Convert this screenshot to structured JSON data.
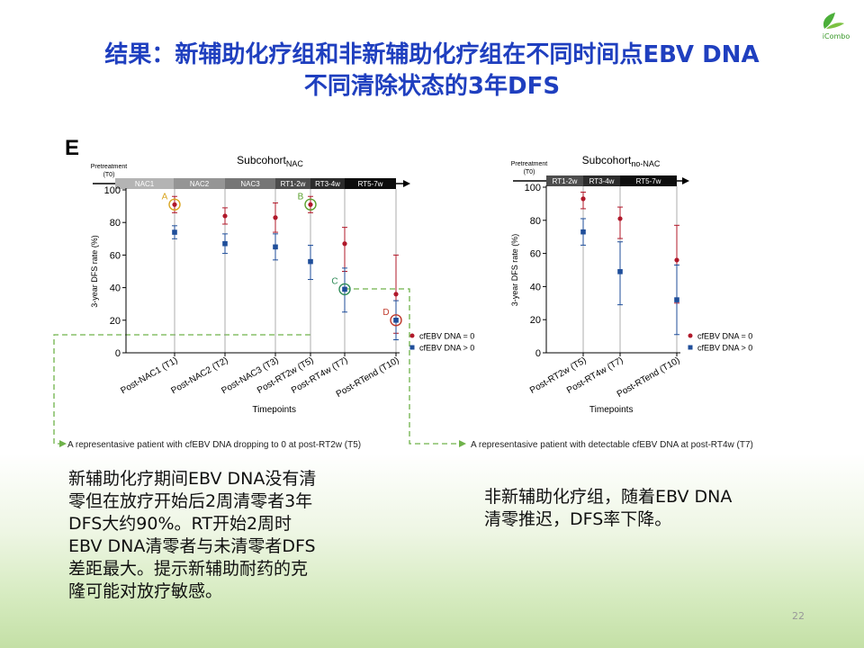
{
  "logo": "iCombo",
  "title": [
    "结果：新辅助化疗组和非新辅助化疗组在不同时间点EBV DNA",
    "不同清除状态的3年DFS"
  ],
  "figure": {
    "panel": "E",
    "charts": [
      {
        "type": "scatter",
        "subcohort": "Subcohort",
        "subscript": "NAC",
        "pretreatment": "Pretreatment",
        "t0": "(T0)",
        "phases": [
          "NAC1",
          "NAC2",
          "NAC3",
          "RT1-2w",
          "RT3-4w",
          "RT5-7w"
        ],
        "y_label": "3-year DFS rate (%)",
        "x_label": "Timepoints",
        "ylim": [
          0,
          100
        ],
        "yticks": [
          0,
          20,
          40,
          60,
          80,
          100
        ],
        "categories": [
          "Post-NAC1 (T1)",
          "Post-NAC2 (T2)",
          "Post-NAC3 (T3)",
          "Post-RT2w (T5)",
          "Post-RT4w (T7)",
          "Post-RTend (T10)"
        ],
        "series": [
          {
            "name": "cfEBV DNA = 0",
            "color": "#b0182a",
            "values": [
              91,
              84,
              83,
              91,
              67,
              36
            ],
            "lower": [
              86,
              79,
              74,
              86,
              50,
              12
            ],
            "upper": [
              96,
              89,
              92,
              96,
              77,
              60
            ]
          },
          {
            "name": "cfEBV DNA > 0",
            "color": "#1f4e9a",
            "values": [
              74,
              67,
              65,
              56,
              39,
              20
            ],
            "lower": [
              70,
              61,
              57,
              45,
              25,
              8
            ],
            "upper": [
              78,
              73,
              73,
              66,
              52,
              32
            ]
          }
        ],
        "annotations": [
          "A",
          "B",
          "C",
          "D"
        ]
      },
      {
        "type": "scatter",
        "subcohort": "Subcohort",
        "subscript": "no-NAC",
        "pretreatment": "Pretreatment",
        "t0": "(T0)",
        "phases": [
          "RT1-2w",
          "RT3-4w",
          "RT5-7w"
        ],
        "y_label": "3-year DFS rate (%)",
        "x_label": "Timepoints",
        "ylim": [
          0,
          100
        ],
        "yticks": [
          0,
          20,
          40,
          60,
          80,
          100
        ],
        "categories": [
          "Post-RT2w (T5)",
          "Post-RT4w (T7)",
          "Post-RTend (T10)"
        ],
        "series": [
          {
            "name": "cfEBV DNA = 0",
            "color": "#b0182a",
            "values": [
              93,
              81,
              56
            ],
            "lower": [
              87,
              69,
              30
            ],
            "upper": [
              97,
              88,
              77
            ]
          },
          {
            "name": "cfEBV DNA > 0",
            "color": "#1f4e9a",
            "values": [
              73,
              49,
              32
            ],
            "lower": [
              65,
              29,
              11
            ],
            "upper": [
              81,
              67,
              53
            ]
          }
        ]
      }
    ],
    "captions": [
      "A representasive patient with cfEBV DNA dropping to 0 at post-RT2w (T5)",
      "A representasive patient with detectable cfEBV DNA at post-RT4w (T7)"
    ]
  },
  "notes": [
    [
      "新辅助化疗期间EBV DNA没有清",
      "零但在放疗开始后2周清零者3年",
      "DFS大约90%。RT开始2周时",
      "EBV DNA清零者与未清零者DFS",
      "差距最大。提示新辅助耐药的克",
      "隆可能对放疗敏感。"
    ],
    [
      "非新辅助化疗组，随着EBV DNA",
      "清零推迟，DFS率下降。"
    ]
  ],
  "page_number": "22"
}
